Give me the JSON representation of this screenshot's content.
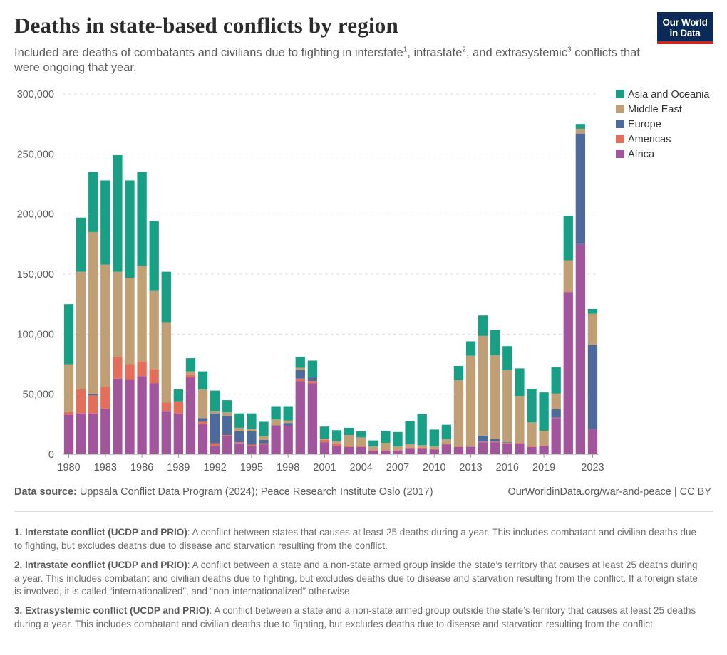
{
  "header": {
    "title": "Deaths in state-based conflicts by region",
    "subtitle_parts": [
      "Included are deaths of combatants and civilians due to fighting in interstate",
      "1",
      ", intrastate",
      "2",
      ", and extrasystemic",
      "3",
      " conflicts that were ongoing that year."
    ],
    "logo_line1": "Our World",
    "logo_line2": "in Data"
  },
  "chart_data": {
    "type": "bar",
    "stacked": true,
    "title": "Deaths in state-based conflicts by region",
    "x": [
      1980,
      1981,
      1982,
      1983,
      1984,
      1985,
      1986,
      1987,
      1988,
      1989,
      1990,
      1991,
      1992,
      1993,
      1994,
      1995,
      1996,
      1997,
      1998,
      1999,
      2000,
      2001,
      2002,
      2003,
      2004,
      2005,
      2006,
      2007,
      2008,
      2009,
      2010,
      2011,
      2012,
      2013,
      2014,
      2015,
      2016,
      2017,
      2018,
      2019,
      2020,
      2021,
      2022,
      2023
    ],
    "x_tick_labels": [
      "1980",
      "1983",
      "1986",
      "1989",
      "1992",
      "1995",
      "1998",
      "2001",
      "2004",
      "2007",
      "2010",
      "2013",
      "2016",
      "2019",
      "2023"
    ],
    "y_tick_labels": [
      "0",
      "50,000",
      "100,000",
      "150,000",
      "200,000",
      "250,000",
      "300,000"
    ],
    "ylim": [
      0,
      300000
    ],
    "grid": "horizontal-dashed",
    "legend_position": "top-right",
    "series": [
      {
        "name": "Africa",
        "color": "#a2559c",
        "values": [
          33000,
          34000,
          34000,
          38000,
          63000,
          62000,
          65000,
          59000,
          36000,
          34000,
          64000,
          25000,
          7000,
          15000,
          9000,
          7000,
          8000,
          24000,
          24000,
          61000,
          59000,
          10000,
          7000,
          6000,
          6000,
          3000,
          3000,
          3000,
          5000,
          5000,
          4000,
          8000,
          6000,
          6000,
          10000,
          10000,
          9000,
          9000,
          6000,
          7000,
          30000,
          135000,
          175000,
          21000
        ]
      },
      {
        "name": "Americas",
        "color": "#e56e5a",
        "values": [
          2000,
          20000,
          15000,
          18000,
          18000,
          13000,
          12000,
          12000,
          7000,
          10000,
          2000,
          2000,
          2000,
          1000,
          1000,
          1000,
          1000,
          0,
          0,
          2000,
          2000,
          2000,
          2000,
          1000,
          1000,
          500,
          500,
          500,
          500,
          500,
          500,
          500,
          500,
          500,
          500,
          500,
          500,
          500,
          500,
          500,
          500,
          500,
          0,
          0
        ]
      },
      {
        "name": "Europe",
        "color": "#4c6a9c",
        "values": [
          0,
          0,
          1000,
          0,
          0,
          0,
          0,
          0,
          0,
          0,
          0,
          3000,
          25000,
          16000,
          9000,
          11000,
          3000,
          0,
          2000,
          7000,
          3000,
          0,
          0,
          0,
          0,
          0,
          0,
          0,
          0,
          0,
          0,
          0,
          0,
          500,
          5000,
          2000,
          500,
          0,
          0,
          0,
          7000,
          0,
          92000,
          70000
        ]
      },
      {
        "name": "Middle East",
        "color": "#c19f74",
        "values": [
          40000,
          98000,
          135000,
          102000,
          71000,
          72000,
          80000,
          65000,
          67000,
          0,
          3000,
          24000,
          2000,
          3000,
          3000,
          2000,
          3000,
          5000,
          2000,
          2000,
          0,
          1000,
          2000,
          9000,
          7000,
          3000,
          6000,
          3000,
          3000,
          2000,
          2000,
          4000,
          55000,
          75000,
          83000,
          70000,
          60000,
          39000,
          20000,
          12000,
          13000,
          26000,
          4000,
          26000
        ]
      },
      {
        "name": "Asia and Oceania",
        "color": "#18a086",
        "values": [
          50000,
          45000,
          50000,
          70000,
          97000,
          81000,
          78000,
          58000,
          42000,
          10000,
          11000,
          15000,
          17000,
          10000,
          12000,
          13000,
          12000,
          11000,
          12000,
          9000,
          14000,
          10000,
          9000,
          6000,
          5000,
          5000,
          10000,
          12000,
          19000,
          26000,
          14000,
          12000,
          12000,
          12000,
          17000,
          21000,
          20000,
          23000,
          28000,
          32000,
          22000,
          37000,
          4000,
          4000
        ]
      }
    ]
  },
  "footer": {
    "source_label": "Data source:",
    "source_text": "Uppsala Conflict Data Program (2024); Peace Research Institute Oslo (2017)",
    "link_text": "OurWorldinData.org/war-and-peace | CC BY",
    "notes": [
      {
        "label": "1. Interstate conflict (UCDP and PRIO)",
        "text": ": A conflict between states that causes at least 25 deaths during a year. This includes combatant and civilian deaths due to fighting, but excludes deaths due to disease and starvation resulting from the conflict."
      },
      {
        "label": "2. Intrastate conflict (UCDP and PRIO)",
        "text": ": A conflict between a state and a non-state armed group inside the state’s territory that causes at least 25 deaths during a year. This includes combatant and civilian deaths due to fighting, but excludes deaths due to disease and starvation resulting from the conflict. If a foreign state is involved, it is called “internationalized”, and “non-internationalized” otherwise."
      },
      {
        "label": "3. Extrasystemic conflict (UCDP and PRIO)",
        "text": ": A conflict between a state and a non-state armed group outside the state’s territory that causes at least 25 deaths during a year. This includes combatant and civilian deaths due to fighting, but excludes deaths due to disease and starvation resulting from the conflict."
      }
    ]
  }
}
